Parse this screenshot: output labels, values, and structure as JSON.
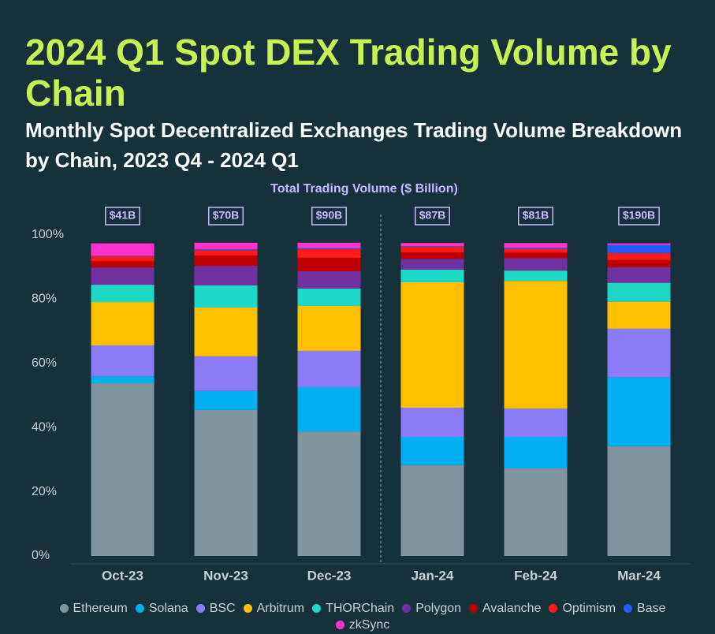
{
  "chart_data": {
    "type": "stacked_bar",
    "title": "2024 Q1 Spot DEX Trading Volume by Chain",
    "subtitle": "Monthly Spot Decentralized Exchanges Trading Volume Breakdown by Chain, 2023 Q4 - 2024 Q1",
    "categories": [
      "Oct-23",
      "Nov-23",
      "Dec-23",
      "Jan-24",
      "Feb-24",
      "Mar-24"
    ],
    "totals": {
      "name": "Total Trading Volume ($ Billion)",
      "values": [
        41,
        70,
        90,
        87,
        81,
        190
      ],
      "value_labels": [
        "$41B",
        "$70B",
        "$90B",
        "$87B",
        "$81B",
        "$190B"
      ]
    },
    "ylim": [
      0,
      100
    ],
    "yticks": [
      {
        "value": 0,
        "label": "0%"
      },
      {
        "value": 20,
        "label": "20%"
      },
      {
        "value": 40,
        "label": "40%"
      },
      {
        "value": 60,
        "label": "60%"
      },
      {
        "value": 80,
        "label": "80%"
      },
      {
        "value": 100,
        "label": "100%"
      }
    ],
    "series": [
      {
        "name": "Ethereum",
        "color": "#7f949c",
        "values": [
          53.8,
          45.5,
          38.8,
          28.3,
          27.3,
          34.2
        ]
      },
      {
        "name": "Solana",
        "color": "#00b0f0",
        "values": [
          2.2,
          5.9,
          13.8,
          8.8,
          9.8,
          21.4
        ]
      },
      {
        "name": "BSC",
        "color": "#8b7cf6",
        "values": [
          9.6,
          10.8,
          11.3,
          9.1,
          8.8,
          15.2
        ]
      },
      {
        "name": "Arbitrum",
        "color": "#ffc000",
        "values": [
          13.5,
          15.2,
          14.0,
          39.1,
          39.8,
          8.4
        ]
      },
      {
        "name": "THORChain",
        "color": "#1ed8c8",
        "values": [
          5.4,
          6.9,
          5.4,
          3.9,
          3.2,
          5.9
        ]
      },
      {
        "name": "Polygon",
        "color": "#7030a0",
        "values": [
          5.4,
          6.1,
          5.4,
          3.4,
          3.9,
          4.9
        ]
      },
      {
        "name": "Avalanche",
        "color": "#c00000",
        "values": [
          2.0,
          3.2,
          4.2,
          2.0,
          1.7,
          2.2
        ]
      },
      {
        "name": "Optimism",
        "color": "#ff1a1a",
        "values": [
          1.5,
          1.7,
          2.7,
          1.7,
          1.2,
          2.2
        ]
      },
      {
        "name": "Base",
        "color": "#1f5cff",
        "values": [
          0.1,
          0.3,
          0.3,
          0.2,
          0.3,
          2.5
        ]
      },
      {
        "name": "zkSync",
        "color": "#ff33cc",
        "values": [
          3.9,
          2.0,
          1.7,
          1.0,
          1.5,
          0.5
        ]
      }
    ]
  }
}
